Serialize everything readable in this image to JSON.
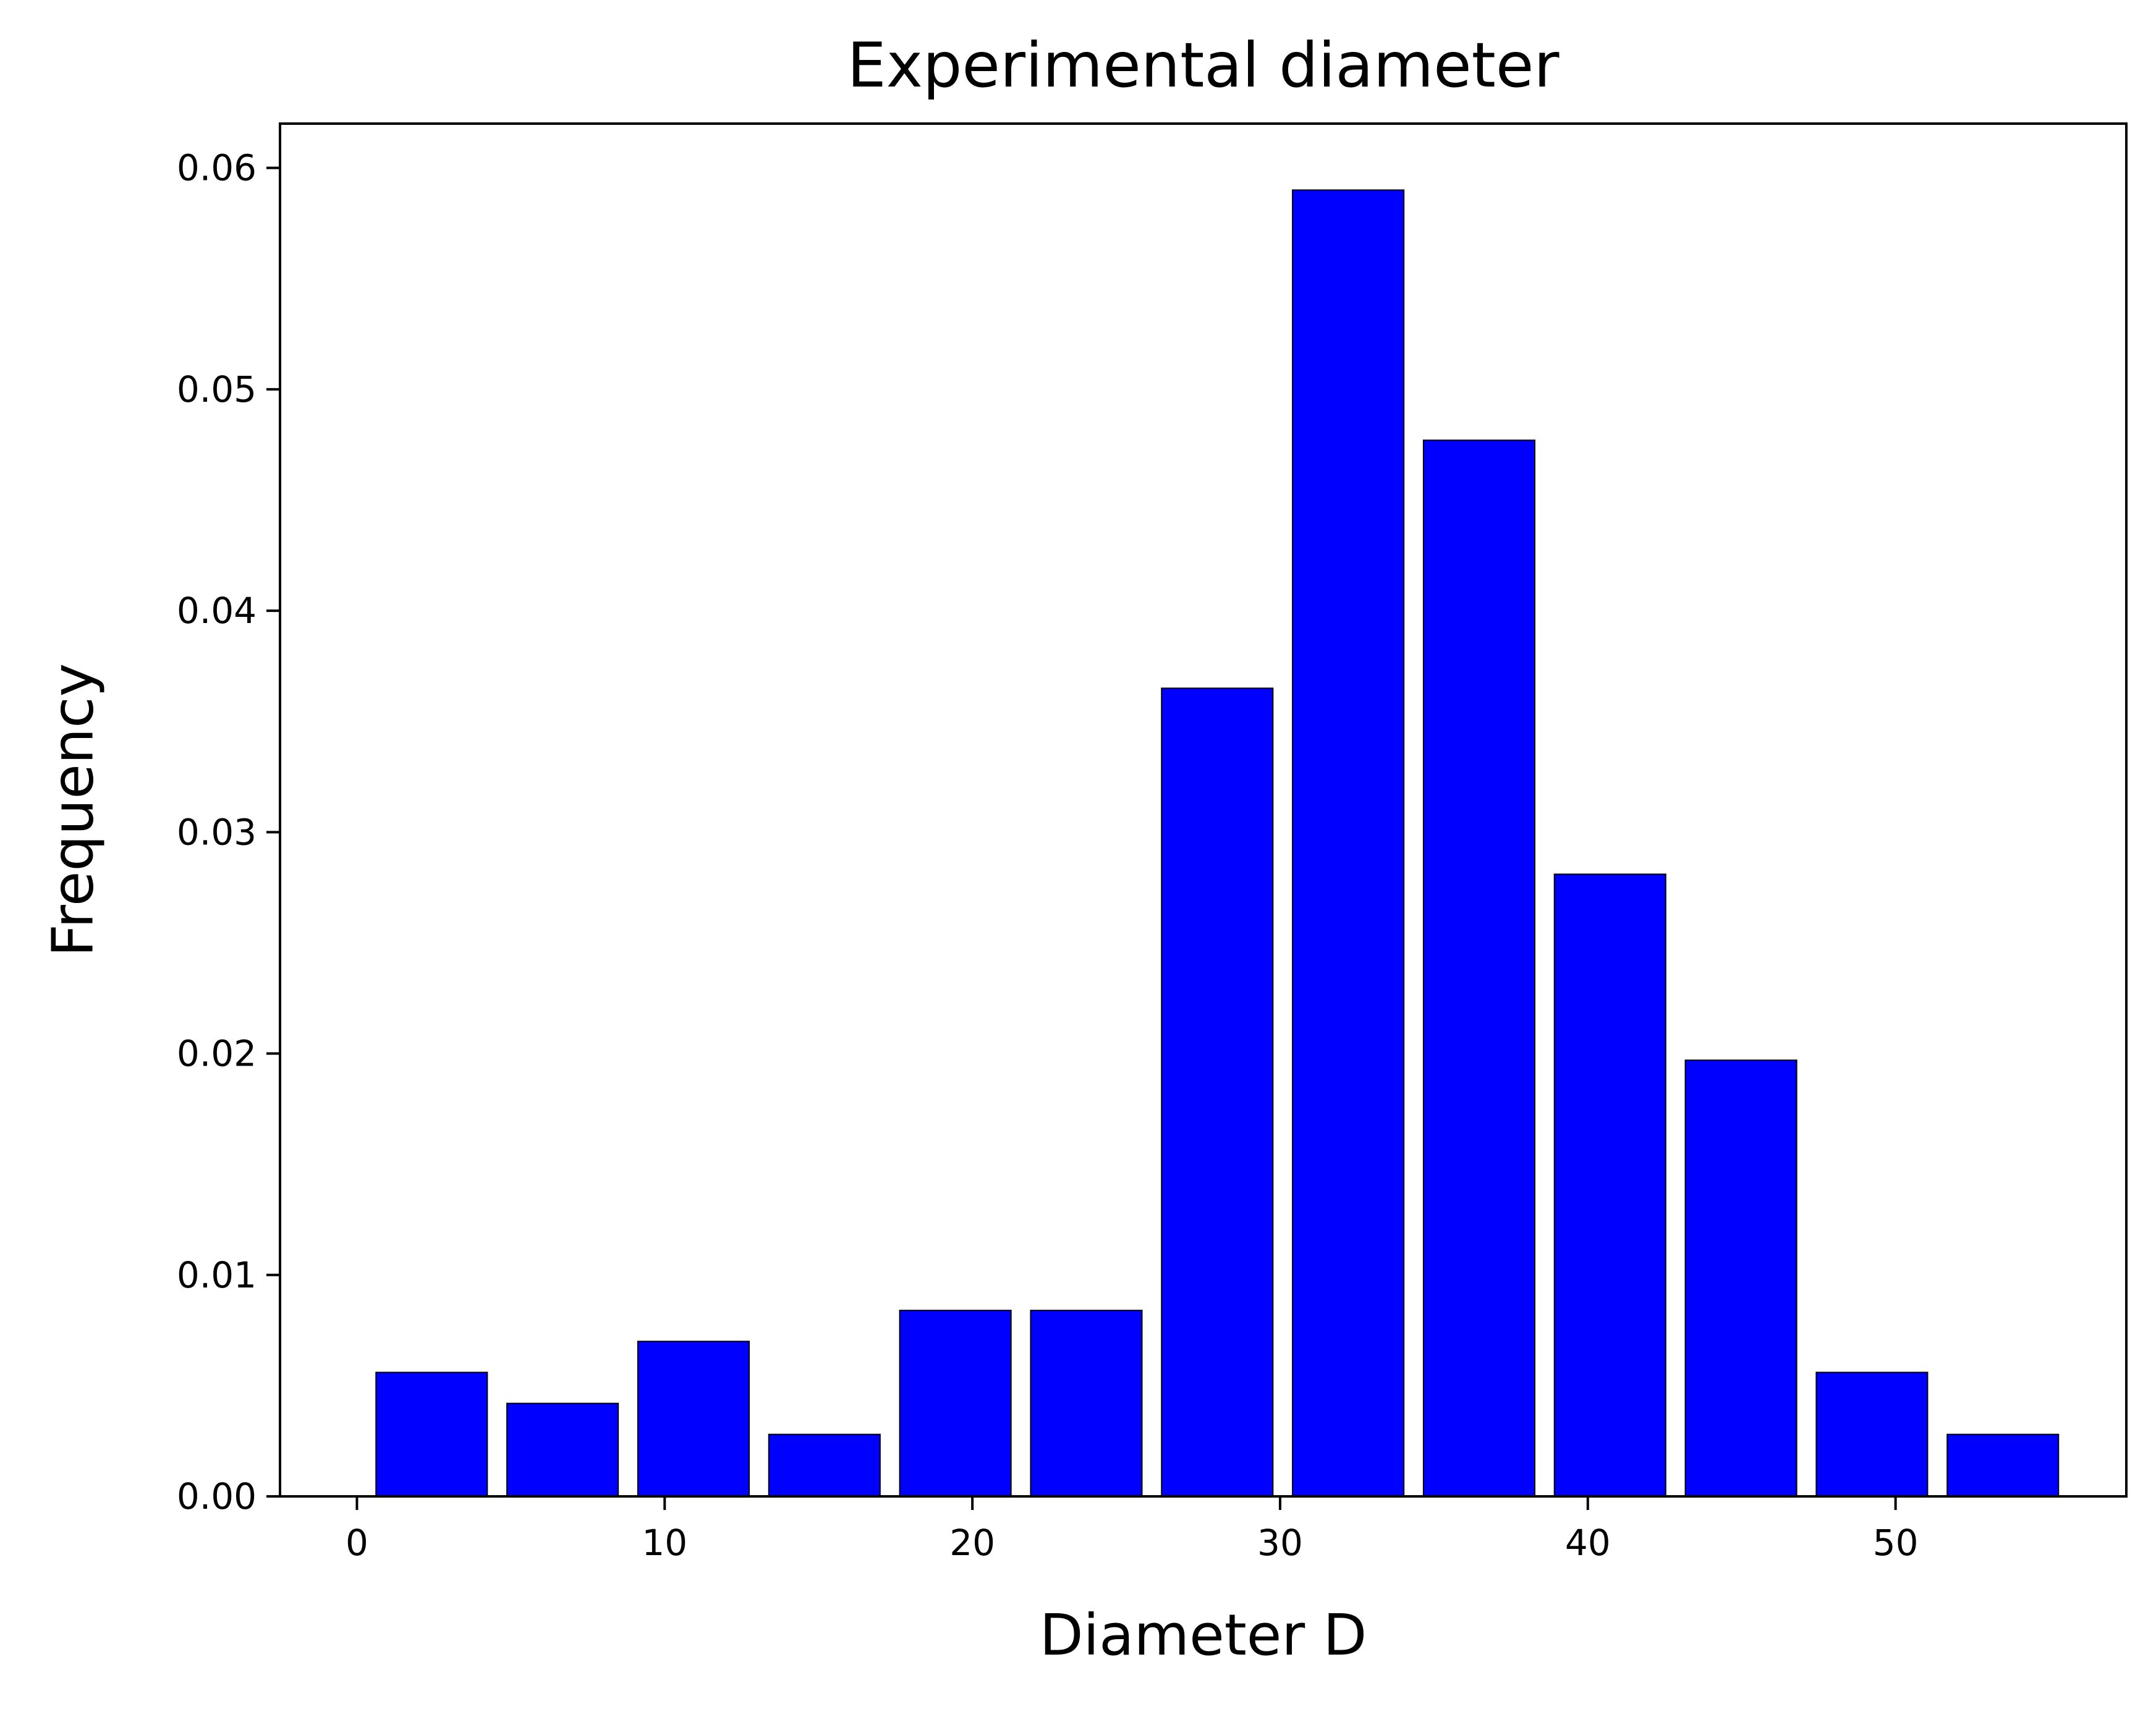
{
  "chart_data": {
    "type": "bar",
    "title": "Experimental diameter",
    "xlabel": "Diameter D",
    "ylabel": "Frequency",
    "xlim": [
      -2.5,
      57.5
    ],
    "ylim": [
      0,
      0.062
    ],
    "x_ticks": [
      0,
      10,
      20,
      30,
      40,
      50
    ],
    "x_tick_labels": [
      "0",
      "10",
      "20",
      "30",
      "40",
      "50"
    ],
    "y_ticks": [
      0,
      0.01,
      0.02,
      0.03,
      0.04,
      0.05,
      0.06
    ],
    "y_tick_labels": [
      "0.00",
      "0.01",
      "0.02",
      "0.03",
      "0.04",
      "0.05",
      "0.06"
    ],
    "bin_edges": [
      0.3,
      4.555,
      8.81,
      13.065,
      17.32,
      21.575,
      25.83,
      30.085,
      34.34,
      38.595,
      42.85,
      47.105,
      51.36,
      55.615
    ],
    "bar_width_fraction": 0.85,
    "values": [
      0.0056,
      0.0042,
      0.007,
      0.0028,
      0.0084,
      0.0084,
      0.0365,
      0.059,
      0.0477,
      0.0281,
      0.0197,
      0.0056,
      0.0028
    ],
    "bar_color": "#0000ff",
    "edge_color": "#000000",
    "grid": false
  }
}
